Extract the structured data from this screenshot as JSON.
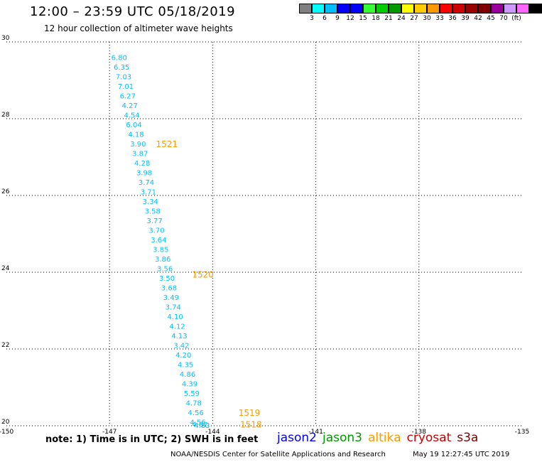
{
  "header": {
    "title": "12:00 – 23:59 UTC 05/18/2019",
    "subtitle": "12 hour collection of altimeter wave heights"
  },
  "color_scale": {
    "colors": [
      "#808080",
      "#00ffff",
      "#00bfff",
      "#0000ff",
      "#0000ff",
      "#33ff33",
      "#00cc00",
      "#009900",
      "#ffff00",
      "#ffcc00",
      "#ff9900",
      "#ff0000",
      "#cc0000",
      "#990000",
      "#800000",
      "#990099",
      "#cc99ff",
      "#ff66ff",
      "#000000"
    ],
    "labels": [
      "3",
      "6",
      "9",
      "12",
      "15",
      "18",
      "21",
      "24",
      "27",
      "30",
      "33",
      "36",
      "39",
      "42",
      "45",
      "70",
      "(ft)"
    ]
  },
  "chart_data": {
    "type": "scatter",
    "xlim": [
      -150,
      -135
    ],
    "ylim": [
      20,
      30
    ],
    "x_ticks": [
      "-150",
      "-147",
      "-144",
      "-141",
      "-138",
      "-135"
    ],
    "y_ticks": [
      "20",
      "22",
      "24",
      "26",
      "28",
      "30"
    ],
    "grid": true,
    "swh_points": [
      {
        "lon": -146.95,
        "lat": 29.6,
        "label": "6.80"
      },
      {
        "lon": -146.88,
        "lat": 29.35,
        "label": "6.35"
      },
      {
        "lon": -146.82,
        "lat": 29.1,
        "label": "7.03"
      },
      {
        "lon": -146.76,
        "lat": 28.85,
        "label": "7.01"
      },
      {
        "lon": -146.7,
        "lat": 28.6,
        "label": "6.27"
      },
      {
        "lon": -146.64,
        "lat": 28.35,
        "label": "4.27"
      },
      {
        "lon": -146.58,
        "lat": 28.1,
        "label": "4.54"
      },
      {
        "lon": -146.52,
        "lat": 27.85,
        "label": "6.04"
      },
      {
        "lon": -146.46,
        "lat": 27.6,
        "label": "4.18"
      },
      {
        "lon": -146.4,
        "lat": 27.35,
        "label": "3.90"
      },
      {
        "lon": -146.34,
        "lat": 27.1,
        "label": "3.87"
      },
      {
        "lon": -146.28,
        "lat": 26.85,
        "label": "4.28"
      },
      {
        "lon": -146.22,
        "lat": 26.6,
        "label": "3.98"
      },
      {
        "lon": -146.16,
        "lat": 26.35,
        "label": "3.74"
      },
      {
        "lon": -146.1,
        "lat": 26.1,
        "label": "3.71"
      },
      {
        "lon": -146.04,
        "lat": 25.85,
        "label": "3.34"
      },
      {
        "lon": -145.98,
        "lat": 25.6,
        "label": "3.58"
      },
      {
        "lon": -145.92,
        "lat": 25.35,
        "label": "3.77"
      },
      {
        "lon": -145.86,
        "lat": 25.1,
        "label": "3.70"
      },
      {
        "lon": -145.8,
        "lat": 24.85,
        "label": "3.64"
      },
      {
        "lon": -145.74,
        "lat": 24.6,
        "label": "3.85"
      },
      {
        "lon": -145.68,
        "lat": 24.35,
        "label": "3.86"
      },
      {
        "lon": -145.62,
        "lat": 24.1,
        "label": "3.56"
      },
      {
        "lon": -145.56,
        "lat": 23.85,
        "label": "3.50"
      },
      {
        "lon": -145.5,
        "lat": 23.6,
        "label": "3.68"
      },
      {
        "lon": -145.44,
        "lat": 23.35,
        "label": "3.49"
      },
      {
        "lon": -145.38,
        "lat": 23.1,
        "label": "3.74"
      },
      {
        "lon": -145.32,
        "lat": 22.85,
        "label": "4.10"
      },
      {
        "lon": -145.26,
        "lat": 22.6,
        "label": "4.12"
      },
      {
        "lon": -145.2,
        "lat": 22.35,
        "label": "4.13"
      },
      {
        "lon": -145.14,
        "lat": 22.1,
        "label": "3.42"
      },
      {
        "lon": -145.08,
        "lat": 21.85,
        "label": "4.20"
      },
      {
        "lon": -145.02,
        "lat": 21.6,
        "label": "4.35"
      },
      {
        "lon": -144.96,
        "lat": 21.35,
        "label": "4.86"
      },
      {
        "lon": -144.9,
        "lat": 21.1,
        "label": "4.39"
      },
      {
        "lon": -144.84,
        "lat": 20.85,
        "label": "5.59"
      },
      {
        "lon": -144.78,
        "lat": 20.6,
        "label": "4.78"
      },
      {
        "lon": -144.72,
        "lat": 20.35,
        "label": "4.56"
      },
      {
        "lon": -144.66,
        "lat": 20.1,
        "label": "4.56"
      },
      {
        "lon": -144.6,
        "lat": 20.05,
        "label": "4.82"
      },
      {
        "lon": -144.54,
        "lat": 20.02,
        "label": "4.83"
      }
    ],
    "time_labels": [
      {
        "lon": -145.65,
        "lat": 27.35,
        "label": "1521"
      },
      {
        "lon": -144.6,
        "lat": 23.95,
        "label": "1520"
      },
      {
        "lon": -143.25,
        "lat": 20.35,
        "label": "1519"
      },
      {
        "lon": -143.2,
        "lat": 20.05,
        "label": "1518"
      }
    ],
    "swh_color": "#00bfff",
    "time_color": "#ff9900"
  },
  "footer": {
    "note": "note: 1) Time is in UTC; 2) SWH is in feet",
    "satellites": [
      {
        "name": "jason2",
        "color": "#0000ff"
      },
      {
        "name": "jason3",
        "color": "#009900"
      },
      {
        "name": "altika",
        "color": "#ff9900"
      },
      {
        "name": "cryosat",
        "color": "#cc0000"
      },
      {
        "name": "s3a",
        "color": "#800000"
      }
    ],
    "credit": "NOAA/NESDIS Center for Satellite Applications and Research",
    "timestamp": "May 19 12:27:45 UTC 2019"
  }
}
